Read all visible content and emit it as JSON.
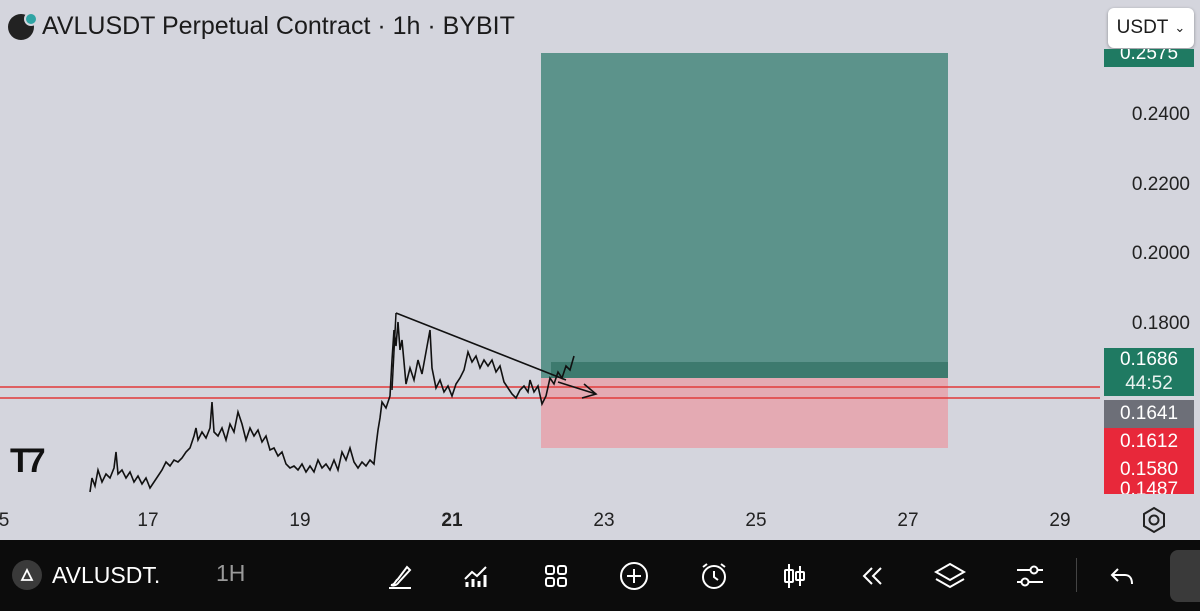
{
  "header": {
    "title": "AVLUSDT Perpetual Contract · 1h · BYBIT",
    "currency": "USDT"
  },
  "price_axis": {
    "labels": [
      "0.2400",
      "0.2200",
      "0.2000",
      "0.1800"
    ]
  },
  "badges": {
    "top_cut": "0.2575",
    "target": "0.1686",
    "countdown": "44:52",
    "current": "0.1641",
    "stop1": "0.1612",
    "stop2": "0.1580",
    "bottom_cut": "0.1487"
  },
  "time_axis": {
    "labels": [
      "5",
      "17",
      "19",
      "21",
      "23",
      "25",
      "27",
      "29"
    ]
  },
  "toolbar": {
    "symbol": "AVLUSDT.",
    "interval": "1H"
  },
  "colors": {
    "profit_zone": "#5c938b",
    "loss_zone": "#e4aab3",
    "line_red": "#e23a3a",
    "badge_green": "#1f7a62",
    "badge_gray": "#6d6f78",
    "badge_red": "#e8283a"
  },
  "icons": [
    "brush-icon",
    "indicators-icon",
    "layout-grid-icon",
    "plus-circle-icon",
    "alarm-icon",
    "candles-icon",
    "replay-icon",
    "layers-icon",
    "settings-sliders-icon",
    "undo-icon"
  ]
}
